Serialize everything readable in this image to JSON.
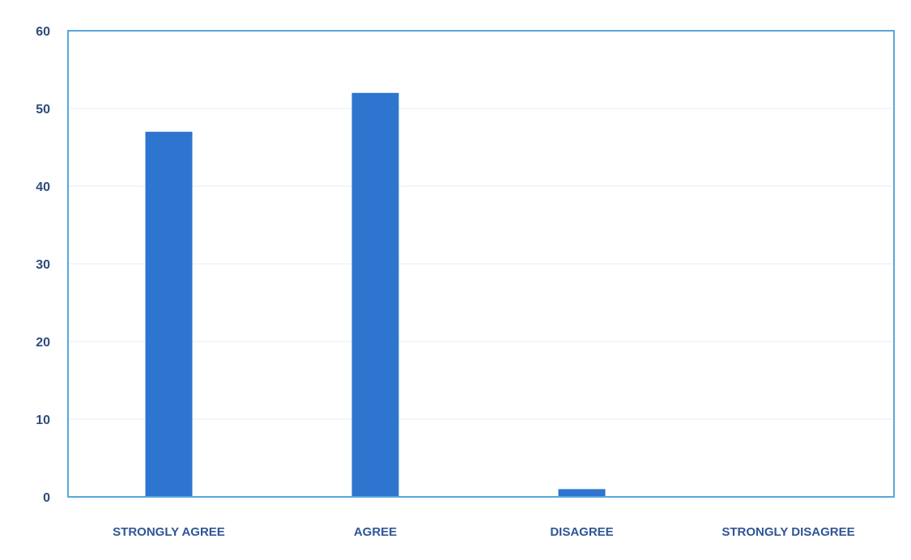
{
  "chart_data": {
    "type": "bar",
    "title": "",
    "xlabel": "",
    "ylabel": "",
    "categories": [
      "STRONGLY AGREE",
      "AGREE",
      "DISAGREE",
      "STRONGLY DISAGREE"
    ],
    "values": [
      47,
      52,
      1,
      0
    ],
    "ylim": [
      0,
      60
    ],
    "yticks": [
      0,
      10,
      20,
      30,
      40,
      50,
      60
    ],
    "grid": true,
    "legend": "none",
    "colors": {
      "bar": "#2e75cf",
      "frame": "#5aa7dc",
      "grid": "#e6eef6",
      "tick_text": "#2f4b7c",
      "category_text": "#2f5597"
    }
  }
}
